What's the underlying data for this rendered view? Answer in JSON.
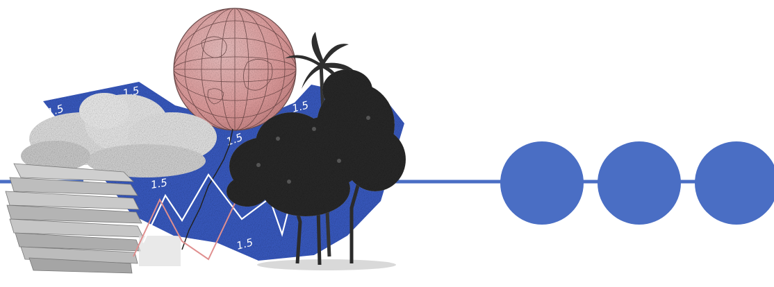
{
  "labels": {
    "l1": "1.5",
    "l2": "1.5",
    "l3": "1.5",
    "l4": "1.5",
    "l5": "1.5",
    "l6": "1.5"
  },
  "colors": {
    "accent": "#4a6ec4",
    "collage_blue": "#3c5fca",
    "globe_pink": "#efaeae",
    "chart_line_pink": "#e08f8f",
    "tree_dark": "#2b2b2b"
  },
  "icons": [
    "globe-icon",
    "palm-tree-icon",
    "tree-icon",
    "cloud-icon",
    "paper-stack-icon",
    "progress-dot-icon"
  ],
  "progress": {
    "total_steps": 3
  }
}
